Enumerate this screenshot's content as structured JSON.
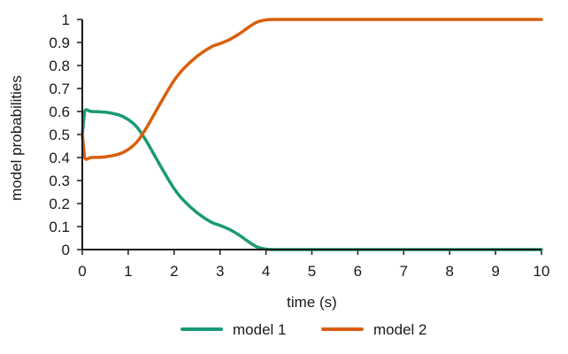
{
  "chart_data": {
    "type": "line",
    "title": "",
    "xlabel": "time (s)",
    "ylabel": "model probabilities",
    "xlim": [
      0,
      10
    ],
    "ylim": [
      0,
      1
    ],
    "x_ticks": [
      "0",
      "1",
      "2",
      "3",
      "4",
      "5",
      "6",
      "7",
      "8",
      "9",
      "10"
    ],
    "y_ticks": [
      "0",
      "0.1",
      "0.2",
      "0.3",
      "0.4",
      "0.5",
      "0.6",
      "0.7",
      "0.8",
      "0.9",
      "1"
    ],
    "grid": false,
    "legend_position": "bottom",
    "series": [
      {
        "name": "model 1",
        "color": "#1a9a76",
        "x": [
          0,
          0.05,
          0.2,
          0.5,
          0.8,
          1.0,
          1.2,
          1.4,
          1.6,
          1.8,
          2.0,
          2.2,
          2.5,
          2.8,
          3.0,
          3.2,
          3.4,
          3.6,
          3.8,
          4.0,
          4.2,
          4.5,
          5,
          6,
          7,
          8,
          9,
          10
        ],
        "y": [
          0.5,
          0.6,
          0.6,
          0.597,
          0.585,
          0.565,
          0.53,
          0.47,
          0.4,
          0.33,
          0.265,
          0.215,
          0.16,
          0.12,
          0.105,
          0.088,
          0.065,
          0.037,
          0.012,
          0.002,
          0.0,
          0.0,
          0.0,
          0.0,
          0.0,
          0.0,
          0.0,
          0.0
        ]
      },
      {
        "name": "model 2",
        "color": "#d95f0e",
        "x": [
          0,
          0.05,
          0.2,
          0.5,
          0.8,
          1.0,
          1.2,
          1.4,
          1.6,
          1.8,
          2.0,
          2.2,
          2.5,
          2.8,
          3.0,
          3.2,
          3.4,
          3.6,
          3.8,
          4.0,
          4.2,
          4.5,
          5,
          6,
          7,
          8,
          9,
          10
        ],
        "y": [
          0.5,
          0.4,
          0.4,
          0.403,
          0.415,
          0.435,
          0.47,
          0.53,
          0.6,
          0.67,
          0.735,
          0.785,
          0.84,
          0.88,
          0.895,
          0.912,
          0.935,
          0.963,
          0.988,
          0.998,
          1.0,
          1.0,
          1.0,
          1.0,
          1.0,
          1.0,
          1.0,
          1.0
        ]
      }
    ]
  }
}
